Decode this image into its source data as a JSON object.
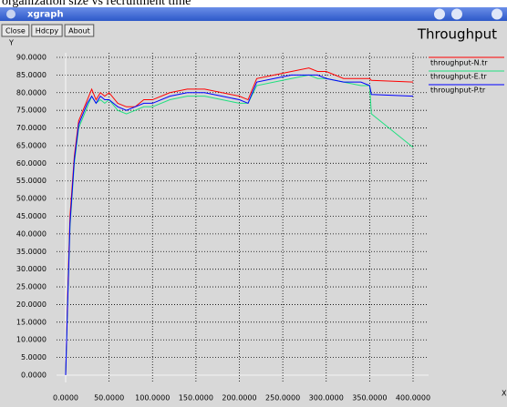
{
  "caption": "organization size vs recruitment time",
  "window": {
    "title": "xgraph",
    "buttons": [
      "Close",
      "Hdcpy",
      "About"
    ]
  },
  "chart_data": {
    "type": "line",
    "title": "Throughput",
    "y_label": "Y",
    "x_label": "X",
    "x": [
      0,
      2,
      5,
      10,
      15,
      20,
      25,
      30,
      35,
      40,
      45,
      50,
      60,
      70,
      80,
      90,
      100,
      120,
      140,
      160,
      180,
      200,
      210,
      220,
      240,
      260,
      280,
      290,
      300,
      320,
      340,
      350,
      352,
      400
    ],
    "series": [
      {
        "name": "throughput-N.tr",
        "color": "#ff0000",
        "values": [
          0,
          20,
          45,
          62,
          72,
          75,
          78,
          81,
          78,
          80,
          79,
          80,
          77,
          76,
          76,
          78,
          78,
          80,
          81,
          81,
          80,
          79,
          78,
          84,
          85,
          86,
          87,
          86,
          86,
          84,
          84,
          84,
          83.5,
          83
        ]
      },
      {
        "name": "throughput-E.tr",
        "color": "#20e080",
        "values": [
          0,
          18,
          42,
          60,
          70,
          73,
          76,
          79,
          77,
          78,
          77,
          78,
          75,
          74,
          75,
          76,
          76,
          78,
          79,
          79,
          78,
          77,
          77,
          82,
          83,
          84,
          85,
          84,
          84,
          83,
          82,
          82,
          74,
          64.5
        ]
      },
      {
        "name": "throughput-P.tr",
        "color": "#0000ff",
        "values": [
          0,
          18,
          43,
          61,
          71,
          74,
          77,
          79,
          77,
          79,
          78,
          78,
          76,
          75,
          76,
          77,
          77,
          79,
          80,
          80,
          79,
          78,
          77,
          83,
          84,
          85,
          85,
          85,
          84,
          83,
          83,
          82,
          79.5,
          79
        ]
      }
    ],
    "xlim": [
      0,
      400
    ],
    "ylim": [
      0,
      90
    ],
    "xticks": [
      {
        "value": 0,
        "label": "0.0000"
      },
      {
        "value": 50,
        "label": "50.0000"
      },
      {
        "value": 100,
        "label": "100.0000"
      },
      {
        "value": 150,
        "label": "150.0000"
      },
      {
        "value": 200,
        "label": "200.0000"
      },
      {
        "value": 250,
        "label": "250.0000"
      },
      {
        "value": 300,
        "label": "300.0000"
      },
      {
        "value": 350,
        "label": "350.0000"
      },
      {
        "value": 400,
        "label": "400.0000"
      }
    ],
    "yticks": [
      {
        "value": 0,
        "label": "0.0000"
      },
      {
        "value": 5,
        "label": "5.0000"
      },
      {
        "value": 10,
        "label": "10.0000"
      },
      {
        "value": 15,
        "label": "15.0000"
      },
      {
        "value": 20,
        "label": "20.0000"
      },
      {
        "value": 25,
        "label": "25.0000"
      },
      {
        "value": 30,
        "label": "30.0000"
      },
      {
        "value": 35,
        "label": "35.0000"
      },
      {
        "value": 40,
        "label": "40.0000"
      },
      {
        "value": 45,
        "label": "45.0000"
      },
      {
        "value": 50,
        "label": "50.0000"
      },
      {
        "value": 55,
        "label": "55.0000"
      },
      {
        "value": 60,
        "label": "60.0000"
      },
      {
        "value": 65,
        "label": "65.0000"
      },
      {
        "value": 70,
        "label": "70.0000"
      },
      {
        "value": 75,
        "label": "75.0000"
      },
      {
        "value": 80,
        "label": "80.0000"
      },
      {
        "value": 85,
        "label": "85.0000"
      },
      {
        "value": 90,
        "label": "90.0000"
      }
    ],
    "grid": true
  }
}
